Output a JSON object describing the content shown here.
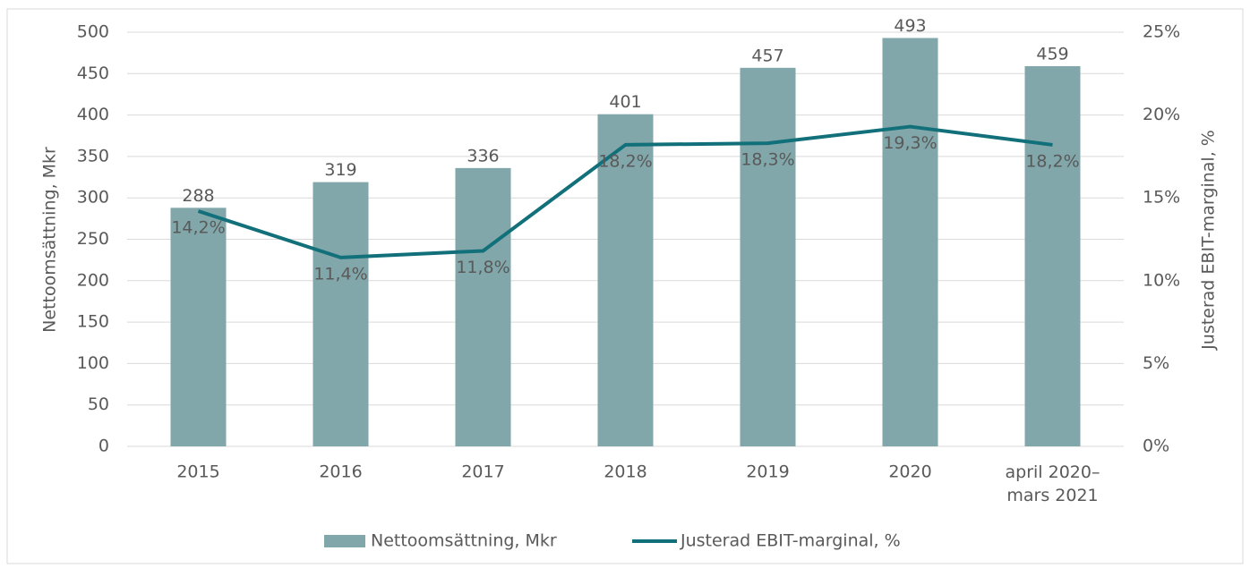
{
  "chart_data": {
    "type": "bar",
    "categories": [
      "2015",
      "2016",
      "2017",
      "2018",
      "2019",
      "2020",
      "april 2020–mars 2021"
    ],
    "series": [
      {
        "name": "Nettoomsättning, Mkr",
        "type": "bar",
        "color": "#82a7aa",
        "values": [
          288,
          319,
          336,
          401,
          457,
          493,
          459
        ]
      },
      {
        "name": "Justerad EBIT-marginal, %",
        "type": "line",
        "axis": "y2",
        "color": "#12707a",
        "values": [
          14.2,
          11.4,
          11.8,
          18.2,
          18.3,
          19.3,
          18.2
        ],
        "value_labels": [
          "14,2%",
          "11,4%",
          "11,8%",
          "18,2%",
          "18,3%",
          "19,3%",
          "18,2%"
        ]
      }
    ],
    "ylabel": "Nettoomsättning, Mkr",
    "y2label": "Justerad EBIT-marginal, %",
    "ylim": [
      0,
      500
    ],
    "yticks": [
      0,
      50,
      100,
      150,
      200,
      250,
      300,
      350,
      400,
      450,
      500
    ],
    "y2lim": [
      0,
      25
    ],
    "y2ticks": [
      {
        "value": 0,
        "label": "0%"
      },
      {
        "value": 5,
        "label": "5%"
      },
      {
        "value": 10,
        "label": "10%"
      },
      {
        "value": 15,
        "label": "15%"
      },
      {
        "value": 20,
        "label": "20%"
      },
      {
        "value": 25,
        "label": "25%"
      }
    ],
    "grid": true,
    "legend": "bottom"
  }
}
